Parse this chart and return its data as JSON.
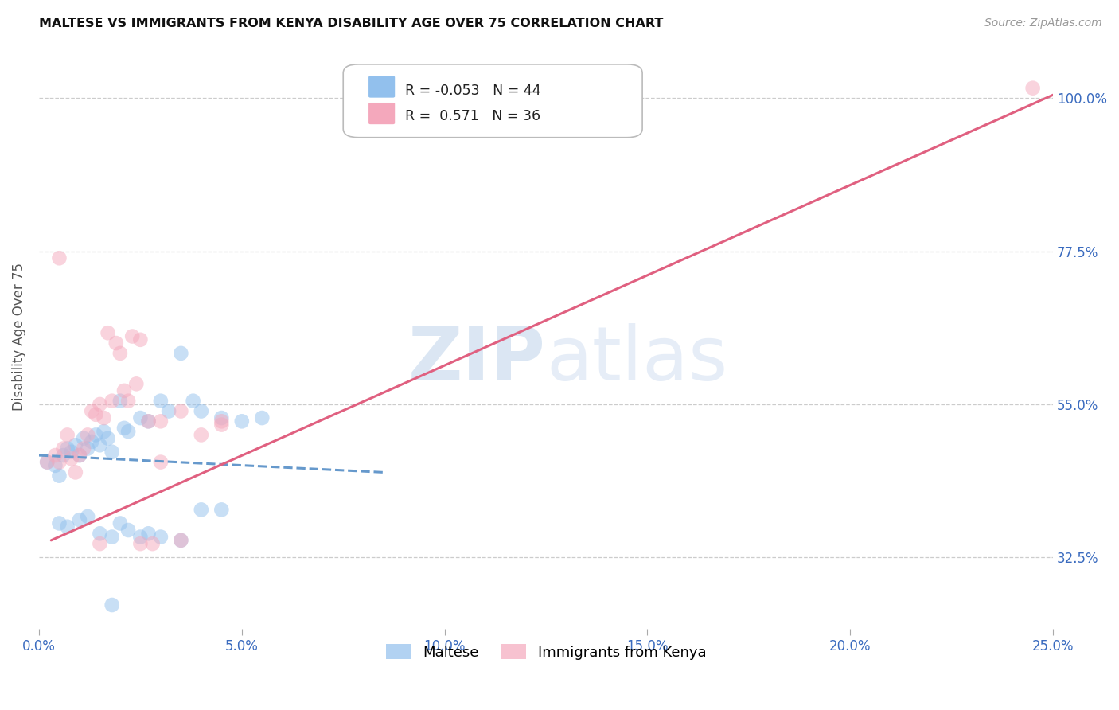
{
  "title": "MALTESE VS IMMIGRANTS FROM KENYA DISABILITY AGE OVER 75 CORRELATION CHART",
  "source": "Source: ZipAtlas.com",
  "ylabel_label": "Disability Age Over 75",
  "legend_blue_label": "Maltese",
  "legend_pink_label": "Immigrants from Kenya",
  "R_blue": -0.053,
  "N_blue": 44,
  "R_pink": 0.571,
  "N_pink": 36,
  "xlim": [
    0.0,
    25.0
  ],
  "ylim": [
    22.0,
    108.0
  ],
  "y_ticks_vals": [
    32.5,
    55.0,
    77.5,
    100.0
  ],
  "x_ticks_vals": [
    0.0,
    5.0,
    10.0,
    15.0,
    20.0,
    25.0
  ],
  "watermark_zip": "ZIP",
  "watermark_atlas": "atlas",
  "blue_color": "#92c0ed",
  "pink_color": "#f4a8bc",
  "blue_line_color": "#6699cc",
  "pink_line_color": "#e06080",
  "blue_scatter": [
    [
      0.2,
      46.5
    ],
    [
      0.4,
      46.0
    ],
    [
      0.5,
      44.5
    ],
    [
      0.6,
      47.5
    ],
    [
      0.7,
      48.5
    ],
    [
      0.8,
      48.0
    ],
    [
      0.9,
      49.0
    ],
    [
      1.0,
      47.5
    ],
    [
      1.1,
      50.0
    ],
    [
      1.2,
      48.5
    ],
    [
      1.3,
      49.5
    ],
    [
      1.4,
      50.5
    ],
    [
      1.5,
      49.0
    ],
    [
      1.6,
      51.0
    ],
    [
      1.7,
      50.0
    ],
    [
      1.8,
      48.0
    ],
    [
      2.0,
      55.5
    ],
    [
      2.1,
      51.5
    ],
    [
      2.2,
      51.0
    ],
    [
      2.5,
      53.0
    ],
    [
      2.7,
      52.5
    ],
    [
      3.0,
      55.5
    ],
    [
      3.2,
      54.0
    ],
    [
      3.5,
      62.5
    ],
    [
      3.8,
      55.5
    ],
    [
      4.0,
      54.0
    ],
    [
      4.5,
      53.0
    ],
    [
      5.0,
      52.5
    ],
    [
      5.5,
      53.0
    ],
    [
      0.5,
      37.5
    ],
    [
      0.7,
      37.0
    ],
    [
      1.0,
      38.0
    ],
    [
      1.2,
      38.5
    ],
    [
      1.5,
      36.0
    ],
    [
      1.8,
      35.5
    ],
    [
      2.0,
      37.5
    ],
    [
      2.2,
      36.5
    ],
    [
      2.5,
      35.5
    ],
    [
      2.7,
      36.0
    ],
    [
      3.0,
      35.5
    ],
    [
      3.5,
      35.0
    ],
    [
      4.0,
      39.5
    ],
    [
      4.5,
      39.5
    ],
    [
      1.8,
      25.5
    ]
  ],
  "pink_scatter": [
    [
      0.2,
      46.5
    ],
    [
      0.4,
      47.5
    ],
    [
      0.5,
      46.5
    ],
    [
      0.6,
      48.5
    ],
    [
      0.7,
      50.5
    ],
    [
      0.8,
      47.0
    ],
    [
      0.9,
      45.0
    ],
    [
      1.0,
      47.5
    ],
    [
      1.1,
      48.5
    ],
    [
      1.2,
      50.5
    ],
    [
      1.3,
      54.0
    ],
    [
      1.4,
      53.5
    ],
    [
      1.5,
      55.0
    ],
    [
      1.6,
      53.0
    ],
    [
      1.7,
      65.5
    ],
    [
      1.8,
      55.5
    ],
    [
      1.9,
      64.0
    ],
    [
      2.0,
      62.5
    ],
    [
      2.1,
      57.0
    ],
    [
      2.2,
      55.5
    ],
    [
      2.3,
      65.0
    ],
    [
      2.4,
      58.0
    ],
    [
      2.5,
      64.5
    ],
    [
      2.7,
      52.5
    ],
    [
      3.0,
      52.5
    ],
    [
      3.0,
      46.5
    ],
    [
      3.5,
      54.0
    ],
    [
      4.5,
      52.5
    ],
    [
      1.5,
      34.5
    ],
    [
      2.5,
      34.5
    ],
    [
      2.8,
      34.5
    ],
    [
      3.5,
      35.0
    ],
    [
      4.5,
      52.0
    ],
    [
      0.5,
      76.5
    ],
    [
      24.5,
      101.5
    ],
    [
      4.0,
      50.5
    ]
  ],
  "blue_trendline_x": [
    0.0,
    8.5
  ],
  "blue_trendline_y": [
    47.5,
    45.0
  ],
  "pink_trendline_x": [
    0.3,
    25.0
  ],
  "pink_trendline_y": [
    35.0,
    100.5
  ]
}
